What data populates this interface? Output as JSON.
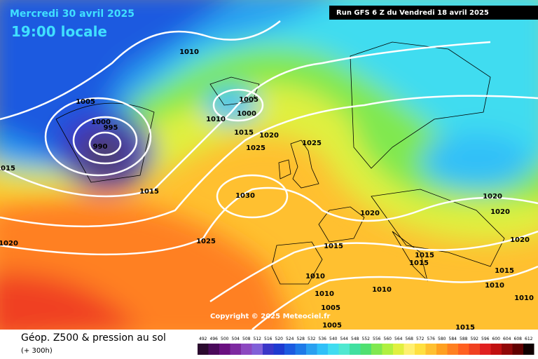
{
  "header": {
    "date": "Mercredi 30 avril 2025",
    "time": "19:00 locale",
    "run": "Run GFS 6 Z du Vendredi 18 avril 2025"
  },
  "isobars": [
    1010,
    1005,
    1000,
    995,
    990,
    1015,
    1015,
    1020,
    1005,
    1000,
    1010,
    1015,
    1020,
    1025,
    1025,
    1030,
    1025,
    1020,
    1015,
    1015,
    1015,
    1010,
    1010,
    1010,
    1005,
    1005,
    1015,
    1020,
    1020,
    1020,
    1015,
    1010,
    1010
  ],
  "copyright": "Copyright © 2025 Meteociel.fr",
  "footer": {
    "title": "Géop. Z500 & pression au sol",
    "lead": "(+ 300h)"
  },
  "legend": [
    {
      "value": 492,
      "color": "#2a0a2e"
    },
    {
      "value": 496,
      "color": "#4a0a5a"
    },
    {
      "value": 500,
      "color": "#6a1080"
    },
    {
      "value": 504,
      "color": "#7d2aa0"
    },
    {
      "value": 508,
      "color": "#8c48c0"
    },
    {
      "value": 512,
      "color": "#8060d8"
    },
    {
      "value": 516,
      "color": "#3a36c8"
    },
    {
      "value": 520,
      "color": "#1e3ad0"
    },
    {
      "value": 524,
      "color": "#1c5ae0"
    },
    {
      "value": 528,
      "color": "#1e7ae8"
    },
    {
      "value": 532,
      "color": "#2aa0f0"
    },
    {
      "value": 536,
      "color": "#30c0f8"
    },
    {
      "value": 540,
      "color": "#40dcf0"
    },
    {
      "value": 544,
      "color": "#50e8d0"
    },
    {
      "value": 548,
      "color": "#40e0a0"
    },
    {
      "value": 552,
      "color": "#50e070"
    },
    {
      "value": 556,
      "color": "#80e850"
    },
    {
      "value": 560,
      "color": "#b0f040"
    },
    {
      "value": 564,
      "color": "#e0f040"
    },
    {
      "value": 568,
      "color": "#fff070"
    },
    {
      "value": 572,
      "color": "#ffe040"
    },
    {
      "value": 576,
      "color": "#ffc030"
    },
    {
      "value": 580,
      "color": "#ffa020"
    },
    {
      "value": 584,
      "color": "#ff8020"
    },
    {
      "value": 588,
      "color": "#ff6020"
    },
    {
      "value": 592,
      "color": "#f04020"
    },
    {
      "value": 596,
      "color": "#e02020"
    },
    {
      "value": 600,
      "color": "#c01010"
    },
    {
      "value": 604,
      "color": "#900808"
    },
    {
      "value": 608,
      "color": "#600000"
    },
    {
      "value": 612,
      "color": "#100000"
    }
  ]
}
